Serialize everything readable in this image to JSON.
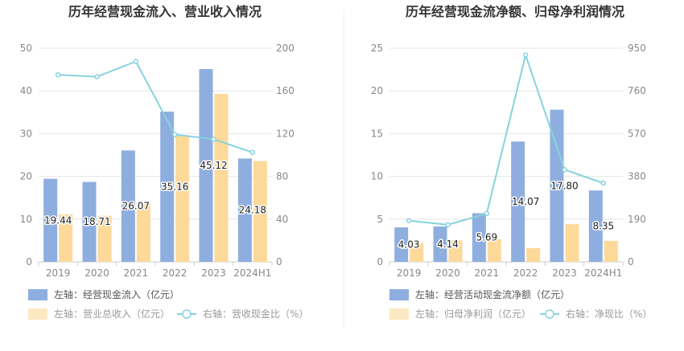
{
  "chart_data": [
    {
      "type": "bar",
      "title": "历年经营现金流入、营业收入情况",
      "categories": [
        "2019",
        "2020",
        "2021",
        "2022",
        "2023",
        "2024H1"
      ],
      "left_axis": {
        "min": 0,
        "max": 50,
        "ticks": [
          "0",
          "10",
          "20",
          "30",
          "40",
          "50"
        ]
      },
      "right_axis": {
        "min": 0,
        "max": 200,
        "ticks": [
          "0",
          "40",
          "80",
          "120",
          "160",
          "200"
        ]
      },
      "series": [
        {
          "name": "左轴：经营现金流入（亿元）",
          "kind": "bar",
          "axis": "left",
          "color": "#8eaedf",
          "values": [
            19.44,
            18.71,
            26.07,
            35.16,
            45.12,
            24.18
          ],
          "labels": [
            "19.44",
            "18.71",
            "26.07",
            "35.16",
            "45.12",
            "24.18"
          ]
        },
        {
          "name": "左轴：营业总收入（亿元）",
          "kind": "bar",
          "axis": "left",
          "color": "#fdd99a",
          "values": [
            11.1,
            10.8,
            13.9,
            29.5,
            39.3,
            23.6
          ]
        },
        {
          "name": "右轴：营收现金比（%）",
          "kind": "line",
          "axis": "right",
          "color": "#86d3dd",
          "values": [
            175.1,
            173.3,
            187.6,
            119.2,
            114.8,
            102.4
          ]
        }
      ]
    },
    {
      "type": "bar",
      "title": "历年经营现金流净额、归母净利润情况",
      "categories": [
        "2019",
        "2020",
        "2021",
        "2022",
        "2023",
        "2024H1"
      ],
      "left_axis": {
        "min": 0,
        "max": 25,
        "ticks": [
          "0",
          "5",
          "10",
          "15",
          "20",
          "25"
        ]
      },
      "right_axis": {
        "min": 0,
        "max": 950,
        "ticks": [
          "0",
          "190",
          "380",
          "570",
          "760",
          "950"
        ]
      },
      "series": [
        {
          "name": "左轴：经营活动现金流净额（亿元）",
          "kind": "bar",
          "axis": "left",
          "color": "#8eaedf",
          "values": [
            4.03,
            4.14,
            5.69,
            14.07,
            17.8,
            8.35
          ],
          "labels": [
            "4.03",
            "4.14",
            "5.69",
            "14.07",
            "17.80",
            "8.35"
          ]
        },
        {
          "name": "左轴：归母净利润（亿元）",
          "kind": "bar",
          "axis": "left",
          "color": "#fdd99a",
          "values": [
            2.2,
            2.5,
            2.65,
            1.6,
            4.4,
            2.45
          ]
        },
        {
          "name": "右轴：净现比（%）",
          "kind": "line",
          "axis": "right",
          "color": "#86d3dd",
          "values": [
            183,
            165,
            215,
            920,
            410,
            350
          ]
        }
      ]
    }
  ]
}
